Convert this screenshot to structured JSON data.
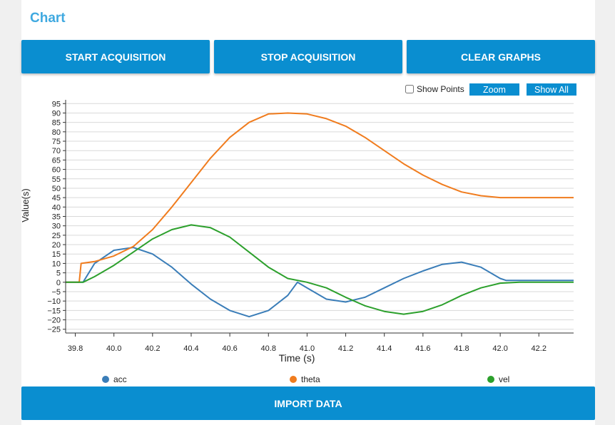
{
  "header": {
    "title": "Chart"
  },
  "toolbar": {
    "start_label": "START ACQUISITION",
    "stop_label": "STOP ACQUISITION",
    "clear_label": "CLEAR GRAPHS"
  },
  "controls": {
    "show_points_label": "Show Points",
    "show_points_checked": false,
    "zoom_label": "Zoom",
    "show_all_label": "Show All"
  },
  "footer": {
    "import_label": "IMPORT DATA"
  },
  "chart_data": {
    "type": "line",
    "xlabel": "Time (s)",
    "ylabel": "Value(s)",
    "xlim": [
      39.75,
      42.38
    ],
    "ylim": [
      -27,
      97
    ],
    "x_ticks": [
      "39.8",
      "40.0",
      "40.2",
      "40.4",
      "40.6",
      "40.8",
      "41.0",
      "41.2",
      "41.4",
      "41.6",
      "41.8",
      "42.0",
      "42.2"
    ],
    "y_ticks": [
      "95",
      "90",
      "85",
      "80",
      "75",
      "70",
      "65",
      "60",
      "55",
      "50",
      "45",
      "40",
      "35",
      "30",
      "25",
      "20",
      "15",
      "10",
      "5",
      "0",
      "−5",
      "−10",
      "−15",
      "−20",
      "−25"
    ],
    "legend_position": "bottom",
    "series": [
      {
        "name": "acc",
        "color": "#3a7db8",
        "x": [
          39.75,
          39.82,
          39.84,
          39.9,
          40.0,
          40.1,
          40.2,
          40.3,
          40.4,
          40.5,
          40.6,
          40.7,
          40.8,
          40.9,
          40.95,
          41.0,
          41.1,
          41.2,
          41.3,
          41.4,
          41.5,
          41.6,
          41.7,
          41.8,
          41.9,
          42.0,
          42.03,
          42.2,
          42.38
        ],
        "values": [
          0,
          0,
          0,
          10,
          17,
          18.5,
          15,
          8,
          -1,
          -9,
          -15,
          -18.3,
          -15,
          -7,
          0,
          -3,
          -9,
          -10.5,
          -8,
          -3,
          2,
          6,
          9.5,
          10.7,
          8,
          2,
          1,
          1,
          1
        ]
      },
      {
        "name": "theta",
        "color": "#f07c1e",
        "x": [
          39.75,
          39.82,
          39.83,
          39.9,
          40.0,
          40.1,
          40.2,
          40.3,
          40.4,
          40.5,
          40.6,
          40.7,
          40.8,
          40.9,
          41.0,
          41.1,
          41.2,
          41.3,
          41.4,
          41.5,
          41.6,
          41.7,
          41.8,
          41.9,
          42.0,
          42.1,
          42.2,
          42.38
        ],
        "values": [
          0,
          0,
          10,
          11,
          14,
          19,
          28,
          40,
          53,
          66,
          77,
          85,
          89.5,
          90,
          89.5,
          87,
          83,
          77,
          70,
          63,
          57,
          52,
          48,
          46,
          45,
          45,
          45,
          45
        ]
      },
      {
        "name": "vel",
        "color": "#2ca02c",
        "x": [
          39.75,
          39.84,
          39.9,
          40.0,
          40.1,
          40.2,
          40.3,
          40.4,
          40.5,
          40.6,
          40.7,
          40.8,
          40.9,
          41.0,
          41.1,
          41.2,
          41.3,
          41.4,
          41.5,
          41.6,
          41.7,
          41.8,
          41.9,
          42.0,
          42.1,
          42.2,
          42.38
        ],
        "values": [
          0,
          0,
          3,
          9,
          16,
          23,
          28,
          30.5,
          29,
          24,
          16,
          8,
          2,
          0,
          -3,
          -8,
          -12.5,
          -15.5,
          -17,
          -15.5,
          -12,
          -7,
          -3,
          -0.5,
          0,
          0,
          0
        ]
      }
    ]
  }
}
